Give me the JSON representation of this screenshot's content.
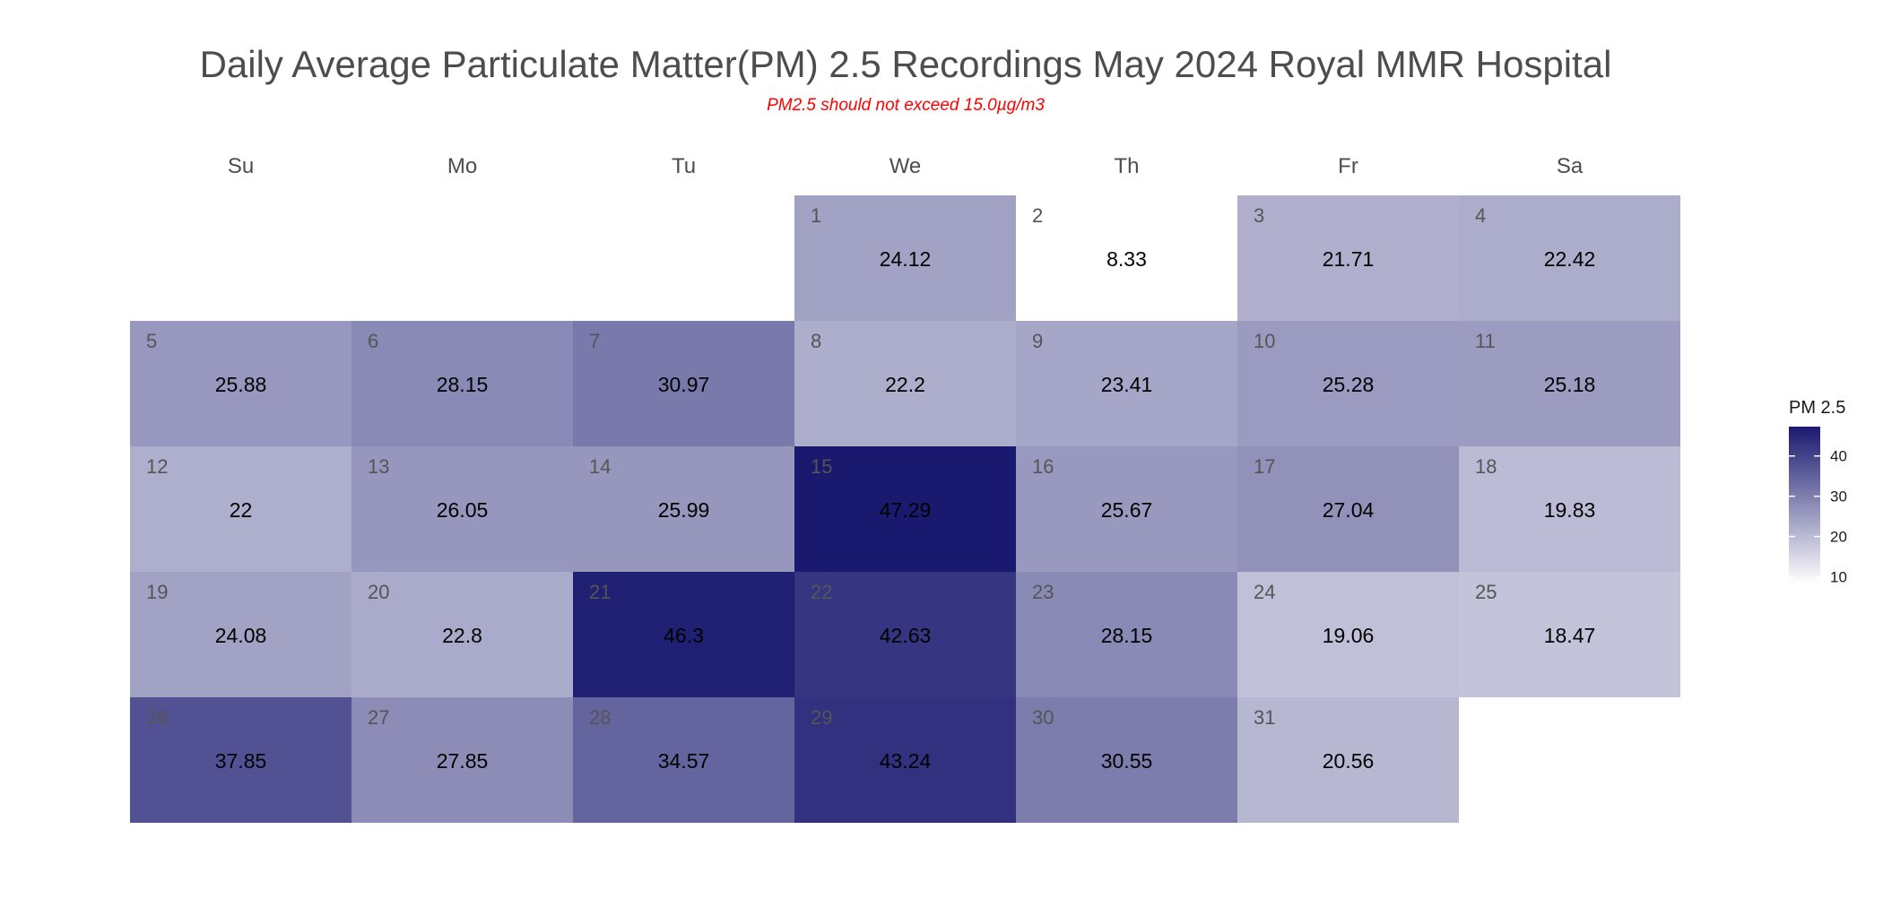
{
  "chart_data": {
    "type": "heatmap",
    "title": "Daily Average Particulate Matter(PM) 2.5 Recordings May 2024 Royal MMR Hospital",
    "subtitle": "PM2.5 should not exceed 15.0µg/m3",
    "weekdays": [
      "Su",
      "Mo",
      "Tu",
      "We",
      "Th",
      "Fr",
      "Sa"
    ],
    "first_weekday_index": 3,
    "days": [
      1,
      2,
      3,
      4,
      5,
      6,
      7,
      8,
      9,
      10,
      11,
      12,
      13,
      14,
      15,
      16,
      17,
      18,
      19,
      20,
      21,
      22,
      23,
      24,
      25,
      26,
      27,
      28,
      29,
      30,
      31
    ],
    "values": [
      "24.12",
      "8.33",
      "21.71",
      "22.42",
      "25.88",
      "28.15",
      "30.97",
      "22.2",
      "23.41",
      "25.28",
      "25.18",
      "22",
      "26.05",
      "25.99",
      "47.29",
      "25.67",
      "27.04",
      "19.83",
      "24.08",
      "22.8",
      "46.3",
      "42.63",
      "28.15",
      "19.06",
      "18.47",
      "37.85",
      "27.85",
      "34.57",
      "43.24",
      "30.55",
      "20.56"
    ],
    "legend": {
      "title": "PM 2.5",
      "ticks": [
        10,
        20,
        30,
        40
      ],
      "range": [
        8.33,
        47.29
      ],
      "colors": [
        "#ffffff",
        "#191970"
      ]
    }
  }
}
